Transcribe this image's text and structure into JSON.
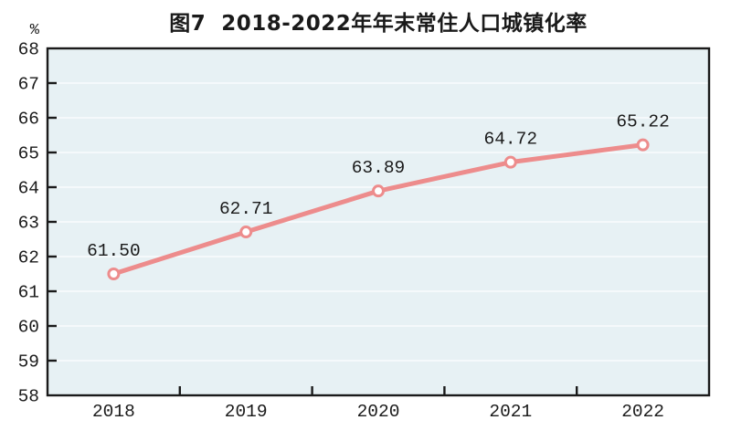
{
  "chart_data": {
    "type": "line",
    "title": "图7  2018-2022年年末常住人口城镇化率",
    "unit_label": "%",
    "categories": [
      "2018",
      "2019",
      "2020",
      "2021",
      "2022"
    ],
    "series": [
      {
        "name": "年末常住人口城镇化率",
        "values": [
          61.5,
          62.71,
          63.89,
          64.72,
          65.22
        ],
        "labels": [
          "61.50",
          "62.71",
          "63.89",
          "64.72",
          "65.22"
        ]
      }
    ],
    "ylim": [
      58,
      68
    ],
    "ytick_step": 1,
    "yticks": [
      58,
      59,
      60,
      61,
      62,
      63,
      64,
      65,
      66,
      67,
      68
    ],
    "grid": true,
    "legend": "none",
    "colors": {
      "line": "#ED8C8C",
      "marker_fill": "#FFFFFF",
      "plot_background": "#E7F1F4",
      "gridline": "#FAFCFD",
      "axis": "#1A1A1A",
      "text": "#1A1A1A"
    }
  }
}
